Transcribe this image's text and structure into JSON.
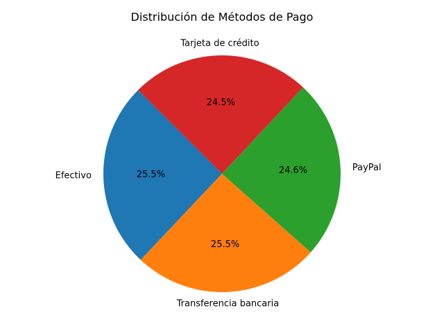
{
  "chart_data": {
    "type": "pie",
    "title": "Distribución de Métodos de Pago",
    "labels": [
      "Efectivo",
      "Transferencia bancaria",
      "PayPal",
      "Tarjeta de crédito"
    ],
    "values": [
      25.5,
      25.5,
      24.6,
      24.5
    ],
    "value_labels": [
      "25.5%",
      "25.5%",
      "24.6%",
      "24.5%"
    ],
    "colors": [
      "#1f77b4",
      "#ff7f0e",
      "#2ca02c",
      "#d62728"
    ],
    "start_angle_deg": 135,
    "direction": "counterclockwise",
    "legend": "none"
  }
}
